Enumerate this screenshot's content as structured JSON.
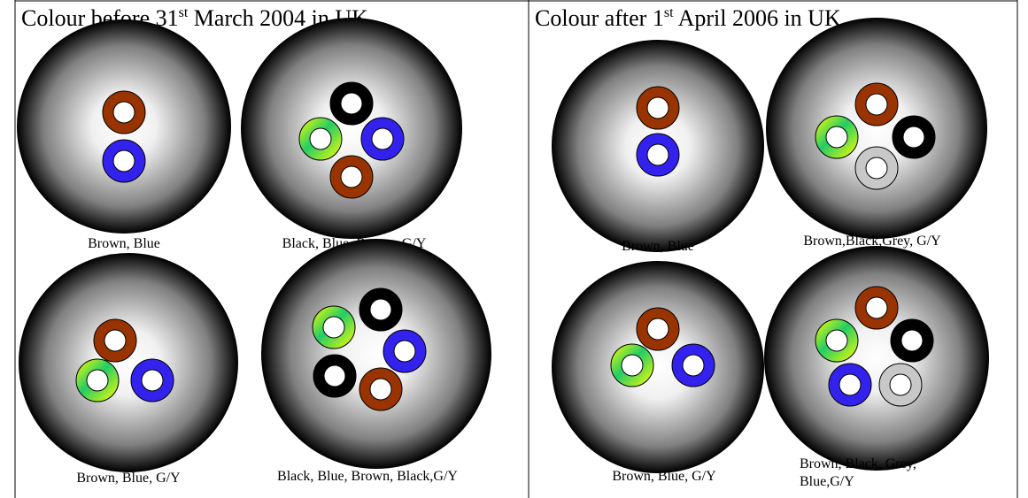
{
  "panels": [
    {
      "title": {
        "pre": "Colour before 31",
        "sup": "st",
        "post": " March 2004 in UK"
      },
      "cables": [
        {
          "caption": [
            "Brown, Blue"
          ]
        },
        {
          "caption": [
            "Black, Blue, Brown, G/Y"
          ]
        },
        {
          "caption": [
            "Brown, Blue, G/Y"
          ]
        },
        {
          "caption": [
            "Black, Blue, Brown, Black,G/Y"
          ]
        }
      ]
    },
    {
      "title": {
        "pre": "Colour after 1",
        "sup": "st",
        "post": " April 2006 in UK"
      },
      "cables": [
        {
          "caption": [
            "Brown, Blue"
          ]
        },
        {
          "caption": [
            "Brown,Black,Grey, G/Y"
          ]
        },
        {
          "caption": [
            "Brown, Blue, G/Y"
          ]
        },
        {
          "caption": [
            "Brown, Black, Grey,",
            "Blue,G/Y"
          ]
        }
      ]
    }
  ]
}
